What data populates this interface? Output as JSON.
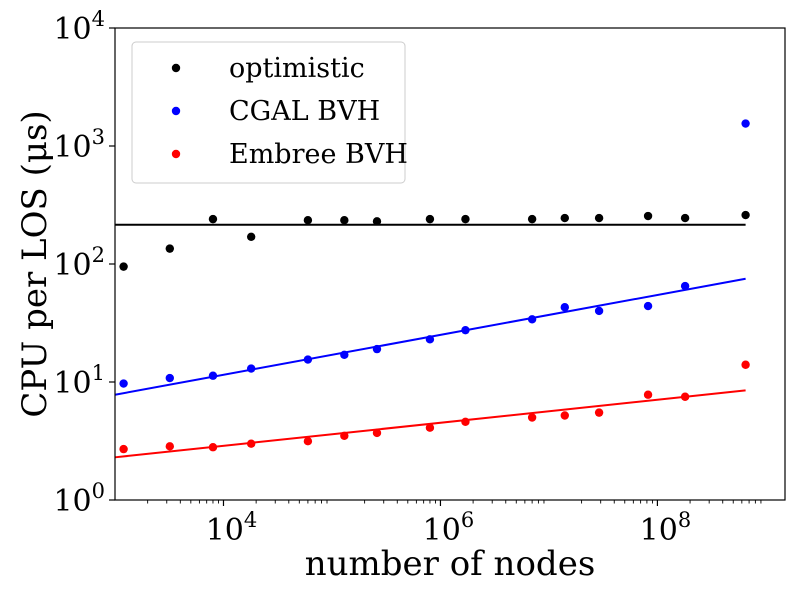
{
  "chart_data": {
    "type": "scatter",
    "title": "",
    "xlabel": "number of nodes",
    "ylabel": "CPU per LOS (μs)",
    "xscale": "log",
    "yscale": "log",
    "xlim": [
      1000,
      1500000000
    ],
    "ylim": [
      1,
      10000
    ],
    "x_ticks": [
      {
        "value": 10000,
        "base": "10",
        "exp": "4"
      },
      {
        "value": 1000000,
        "base": "10",
        "exp": "6"
      },
      {
        "value": 100000000,
        "base": "10",
        "exp": "8"
      }
    ],
    "y_ticks": [
      {
        "value": 1,
        "base": "10",
        "exp": "0"
      },
      {
        "value": 10,
        "base": "10",
        "exp": "1"
      },
      {
        "value": 100,
        "base": "10",
        "exp": "2"
      },
      {
        "value": 1000,
        "base": "10",
        "exp": "3"
      },
      {
        "value": 10000,
        "base": "10",
        "exp": "4"
      }
    ],
    "legend_position": "top-left",
    "series": [
      {
        "name": "optimistic",
        "color": "#000000",
        "x": [
          1200,
          3200,
          8000,
          18000,
          60000,
          130000,
          260000,
          800000,
          1700000,
          7000000,
          14000000,
          29000000,
          82000000,
          180000000,
          650000000
        ],
        "y": [
          95,
          135,
          240,
          170,
          235,
          235,
          230,
          240,
          240,
          240,
          245,
          245,
          255,
          245,
          260
        ],
        "fit": {
          "x": [
            1000,
            650000000
          ],
          "y": [
            215,
            215
          ]
        }
      },
      {
        "name": "CGAL BVH",
        "color": "#0000ff",
        "x": [
          1200,
          3200,
          8000,
          18000,
          60000,
          130000,
          260000,
          800000,
          1700000,
          7000000,
          14000000,
          29000000,
          82000000,
          180000000,
          650000000
        ],
        "y": [
          9.7,
          10.8,
          11.3,
          13,
          15.5,
          17,
          19,
          23,
          27.5,
          34,
          43,
          40,
          44,
          65,
          1550
        ],
        "fit": {
          "x": [
            1000,
            650000000
          ],
          "y": [
            7.8,
            75
          ]
        }
      },
      {
        "name": "Embree BVH",
        "color": "#ff0000",
        "x": [
          1200,
          3200,
          8000,
          18000,
          60000,
          130000,
          260000,
          800000,
          1700000,
          7000000,
          14000000,
          29000000,
          82000000,
          180000000,
          650000000
        ],
        "y": [
          2.7,
          2.85,
          2.8,
          3.0,
          3.15,
          3.5,
          3.7,
          4.1,
          4.6,
          5.0,
          5.2,
          5.5,
          7.8,
          7.5,
          14
        ],
        "fit": {
          "x": [
            1000,
            650000000
          ],
          "y": [
            2.3,
            8.5
          ]
        }
      }
    ]
  }
}
